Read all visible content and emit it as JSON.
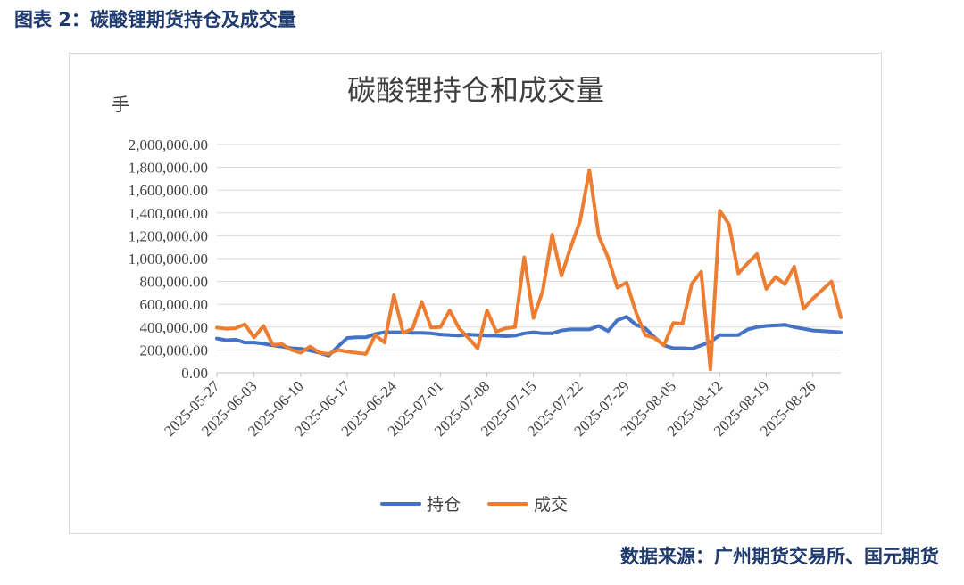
{
  "header": {
    "figure_title": "图表 2：碳酸锂期货持仓及成交量",
    "source": "数据来源：广州期货交易所、国元期货"
  },
  "chart_data": {
    "type": "line",
    "title": "碳酸锂持仓和成交量",
    "ylabel": "手",
    "xlabel": "",
    "ylim": [
      0,
      2000000
    ],
    "yticks": [
      "2,000,000.00",
      "1,800,000.00",
      "1,600,000.00",
      "1,400,000.00",
      "1,200,000.00",
      "1,000,000.00",
      "800,000.00",
      "600,000.00",
      "400,000.00",
      "200,000.00",
      "0.00"
    ],
    "xtick_labels": [
      "2025-05-27",
      "2025-06-03",
      "2025-06-10",
      "2025-06-17",
      "2025-06-24",
      "2025-07-01",
      "2025-07-08",
      "2025-07-15",
      "2025-07-22",
      "2025-07-29",
      "2025-08-05",
      "2025-08-12",
      "2025-08-19",
      "2025-08-26"
    ],
    "x": [
      "2025-05-27",
      "2025-05-28",
      "2025-05-29",
      "2025-05-30",
      "2025-06-03",
      "2025-06-04",
      "2025-06-05",
      "2025-06-06",
      "2025-06-09",
      "2025-06-10",
      "2025-06-11",
      "2025-06-12",
      "2025-06-13",
      "2025-06-16",
      "2025-06-17",
      "2025-06-18",
      "2025-06-19",
      "2025-06-20",
      "2025-06-23",
      "2025-06-24",
      "2025-06-25",
      "2025-06-26",
      "2025-06-27",
      "2025-06-30",
      "2025-07-01",
      "2025-07-02",
      "2025-07-03",
      "2025-07-04",
      "2025-07-07",
      "2025-07-08",
      "2025-07-09",
      "2025-07-10",
      "2025-07-11",
      "2025-07-14",
      "2025-07-15",
      "2025-07-16",
      "2025-07-17",
      "2025-07-18",
      "2025-07-21",
      "2025-07-22",
      "2025-07-23",
      "2025-07-24",
      "2025-07-25",
      "2025-07-28",
      "2025-07-29",
      "2025-07-30",
      "2025-07-31",
      "2025-08-01",
      "2025-08-04",
      "2025-08-05",
      "2025-08-06",
      "2025-08-07",
      "2025-08-08",
      "2025-08-11",
      "2025-08-12",
      "2025-08-13",
      "2025-08-14",
      "2025-08-15",
      "2025-08-18",
      "2025-08-19",
      "2025-08-20",
      "2025-08-21",
      "2025-08-22",
      "2025-08-25",
      "2025-08-26",
      "2025-08-27",
      "2025-08-28",
      "2025-08-29"
    ],
    "series": [
      {
        "name": "持仓",
        "color": "#4472c4",
        "values": [
          300000,
          285000,
          290000,
          265000,
          265000,
          255000,
          240000,
          230000,
          215000,
          210000,
          195000,
          175000,
          150000,
          230000,
          305000,
          310000,
          310000,
          340000,
          355000,
          355000,
          355000,
          350000,
          350000,
          345000,
          335000,
          330000,
          325000,
          335000,
          330000,
          325000,
          325000,
          320000,
          325000,
          345000,
          355000,
          345000,
          345000,
          370000,
          380000,
          380000,
          380000,
          410000,
          365000,
          460000,
          490000,
          420000,
          390000,
          310000,
          240000,
          215000,
          215000,
          210000,
          240000,
          270000,
          330000,
          330000,
          330000,
          380000,
          400000,
          410000,
          415000,
          420000,
          400000,
          385000,
          370000,
          365000,
          360000,
          355000
        ]
      },
      {
        "name": "成交",
        "color": "#ed7d31",
        "values": [
          395000,
          385000,
          390000,
          425000,
          310000,
          410000,
          245000,
          250000,
          200000,
          175000,
          230000,
          175000,
          165000,
          200000,
          185000,
          175000,
          165000,
          330000,
          265000,
          680000,
          350000,
          385000,
          620000,
          395000,
          400000,
          545000,
          390000,
          305000,
          215000,
          545000,
          360000,
          390000,
          400000,
          1010000,
          480000,
          720000,
          1210000,
          850000,
          1100000,
          1330000,
          1775000,
          1200000,
          1010000,
          745000,
          790000,
          530000,
          330000,
          305000,
          240000,
          435000,
          430000,
          780000,
          885000,
          30000,
          1420000,
          1300000,
          870000,
          960000,
          1040000,
          735000,
          840000,
          775000,
          930000,
          560000,
          650000,
          725000,
          800000,
          485000
        ]
      }
    ],
    "legend": {
      "position": "bottom",
      "items": [
        "持仓",
        "成交"
      ]
    },
    "grid": true
  }
}
